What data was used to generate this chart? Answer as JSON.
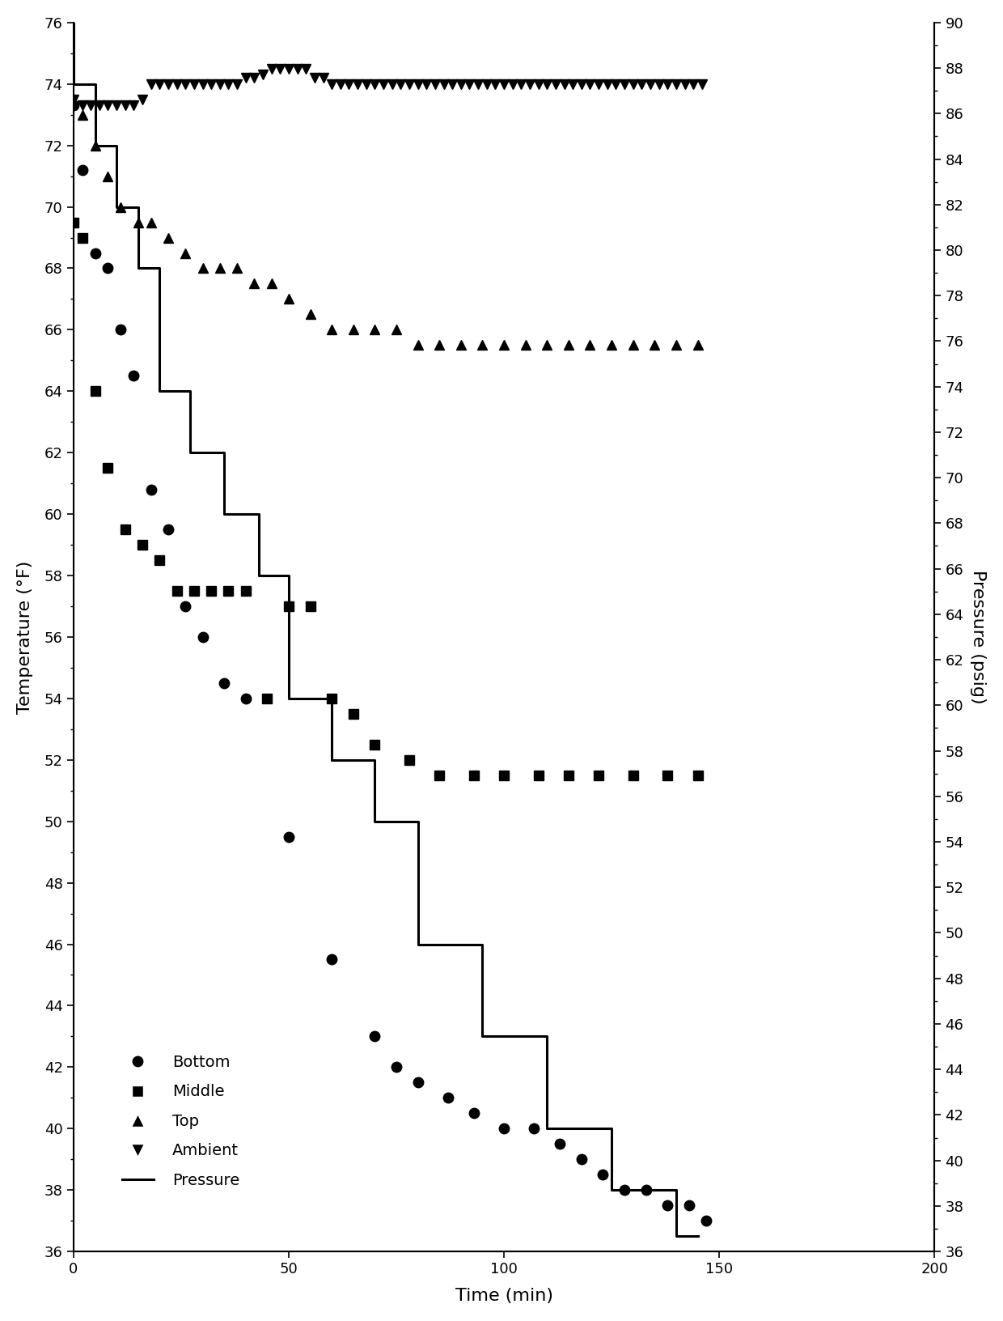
{
  "xlabel": "Time (min)",
  "ylabel_left": "Temperature (°F)",
  "ylabel_right": "Pressure (psig)",
  "xlim": [
    0,
    200
  ],
  "ylim_left": [
    36,
    76
  ],
  "ylim_right": [
    36,
    90
  ],
  "xticks": [
    0,
    50,
    100,
    150,
    200
  ],
  "yticks_left": [
    36,
    38,
    40,
    42,
    44,
    46,
    48,
    50,
    52,
    54,
    56,
    58,
    60,
    62,
    64,
    66,
    68,
    70,
    72,
    74,
    76
  ],
  "yticks_right": [
    36,
    38,
    40,
    42,
    44,
    46,
    48,
    50,
    52,
    54,
    56,
    58,
    60,
    62,
    64,
    66,
    68,
    70,
    72,
    74,
    76,
    78,
    80,
    82,
    84,
    86,
    88,
    90
  ],
  "bottom_x": [
    0,
    2,
    5,
    8,
    11,
    14,
    18,
    22,
    26,
    30,
    35,
    40,
    50,
    60,
    70,
    75,
    80,
    87,
    93,
    100,
    107,
    113,
    118,
    123,
    128,
    133,
    138,
    143,
    147
  ],
  "bottom_y": [
    73.3,
    71.2,
    68.5,
    68.0,
    66.0,
    64.5,
    60.8,
    59.5,
    57.0,
    56.0,
    54.5,
    54.0,
    49.5,
    45.5,
    43.0,
    42.0,
    41.5,
    41.0,
    40.5,
    40.0,
    40.0,
    39.5,
    39.0,
    38.5,
    38.0,
    38.0,
    37.5,
    37.5,
    37.0
  ],
  "middle_x": [
    0,
    2,
    5,
    8,
    12,
    16,
    20,
    24,
    28,
    32,
    36,
    40,
    45,
    50,
    55,
    60,
    65,
    70,
    78,
    85,
    93,
    100,
    108,
    115,
    122,
    130,
    138,
    145
  ],
  "middle_y": [
    69.5,
    69.0,
    64.0,
    61.5,
    59.5,
    59.0,
    58.5,
    57.5,
    57.5,
    57.5,
    57.5,
    57.5,
    54.0,
    57.0,
    57.0,
    54.0,
    53.5,
    52.5,
    52.0,
    51.5,
    51.5,
    51.5,
    51.5,
    51.5,
    51.5,
    51.5,
    51.5,
    51.5
  ],
  "top_x": [
    2,
    5,
    8,
    11,
    15,
    18,
    22,
    26,
    30,
    34,
    38,
    42,
    46,
    50,
    55,
    60,
    65,
    70,
    75,
    80,
    85,
    90,
    95,
    100,
    105,
    110,
    115,
    120,
    125,
    130,
    135,
    140,
    145
  ],
  "top_y": [
    73.0,
    72.0,
    71.0,
    70.0,
    69.5,
    69.5,
    69.0,
    68.5,
    68.0,
    68.0,
    68.0,
    67.5,
    67.5,
    67.0,
    66.5,
    66.0,
    66.0,
    66.0,
    66.0,
    65.5,
    65.5,
    65.5,
    65.5,
    65.5,
    65.5,
    65.5,
    65.5,
    65.5,
    65.5,
    65.5,
    65.5,
    65.5,
    65.5
  ],
  "ambient_x": [
    0,
    2,
    4,
    6,
    8,
    10,
    12,
    14,
    16,
    18,
    20,
    22,
    24,
    26,
    28,
    30,
    32,
    34,
    36,
    38,
    40,
    42,
    44,
    46,
    48,
    50,
    52,
    54,
    56,
    58,
    60,
    62,
    64,
    66,
    68,
    70,
    72,
    74,
    76,
    78,
    80,
    82,
    84,
    86,
    88,
    90,
    92,
    94,
    96,
    98,
    100,
    102,
    104,
    106,
    108,
    110,
    112,
    114,
    116,
    118,
    120,
    122,
    124,
    126,
    128,
    130,
    132,
    134,
    136,
    138,
    140,
    142,
    144,
    146
  ],
  "ambient_y": [
    73.5,
    73.3,
    73.3,
    73.3,
    73.3,
    73.3,
    73.3,
    73.3,
    73.5,
    74.0,
    74.0,
    74.0,
    74.0,
    74.0,
    74.0,
    74.0,
    74.0,
    74.0,
    74.0,
    74.0,
    74.2,
    74.2,
    74.3,
    74.5,
    74.5,
    74.5,
    74.5,
    74.5,
    74.2,
    74.2,
    74.0,
    74.0,
    74.0,
    74.0,
    74.0,
    74.0,
    74.0,
    74.0,
    74.0,
    74.0,
    74.0,
    74.0,
    74.0,
    74.0,
    74.0,
    74.0,
    74.0,
    74.0,
    74.0,
    74.0,
    74.0,
    74.0,
    74.0,
    74.0,
    74.0,
    74.0,
    74.0,
    74.0,
    74.0,
    74.0,
    74.0,
    74.0,
    74.0,
    74.0,
    74.0,
    74.0,
    74.0,
    74.0,
    74.0,
    74.0,
    74.0,
    74.0,
    74.0,
    74.0
  ],
  "pressure_x": [
    0,
    0,
    5,
    5,
    10,
    10,
    15,
    15,
    20,
    20,
    27,
    27,
    35,
    35,
    43,
    43,
    50,
    50,
    60,
    60,
    70,
    70,
    80,
    80,
    95,
    95,
    110,
    110,
    125,
    125,
    140,
    140,
    145
  ],
  "pressure_y": [
    76,
    74,
    74,
    72,
    72,
    70,
    70,
    68,
    68,
    64,
    64,
    62,
    62,
    60,
    60,
    58,
    58,
    54,
    54,
    52,
    52,
    50,
    50,
    46,
    46,
    43,
    43,
    40,
    40,
    38,
    38,
    36.5,
    36.5
  ],
  "color": "black",
  "figsize": [
    12.4,
    16.32
  ],
  "dpi": 100,
  "legend_labels": [
    "Bottom",
    "Middle",
    "Top",
    "Ambient",
    "Pressure"
  ]
}
